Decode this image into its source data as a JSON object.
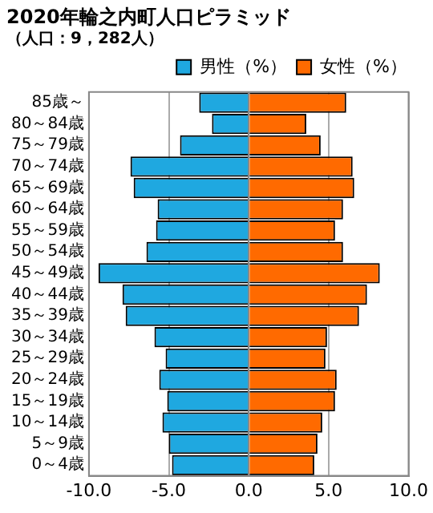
{
  "chart_data": {
    "type": "bar",
    "orientation": "horizontal",
    "stacked": true,
    "title": "2020年輪之内町人口ピラミッド",
    "subtitle": "（人口：9，282人）",
    "categories": [
      "85歳～",
      "80～84歳",
      "75～79歳",
      "70～74歳",
      "65～69歳",
      "60～64歳",
      "55～59歳",
      "50～54歳",
      "45～49歳",
      "40～44歳",
      "35～39歳",
      "30～34歳",
      "25～29歳",
      "20～24歳",
      "15～19歳",
      "10～14歳",
      "5～9歳",
      "0～4歳"
    ],
    "series": [
      {
        "name": "男性（%）",
        "color": "#1fa8e0",
        "values": [
          -3.1,
          -2.3,
          -4.3,
          -7.4,
          -7.2,
          -5.7,
          -5.8,
          -6.4,
          -9.4,
          -7.9,
          -7.7,
          -5.9,
          -5.2,
          -5.6,
          -5.1,
          -5.4,
          -5.0,
          -4.8
        ]
      },
      {
        "name": "女性（%）",
        "color": "#ff6a00",
        "values": [
          6.1,
          3.6,
          4.5,
          6.5,
          6.6,
          5.9,
          5.4,
          5.9,
          8.2,
          7.4,
          6.9,
          4.9,
          4.8,
          5.5,
          5.4,
          4.6,
          4.3,
          4.1
        ]
      }
    ],
    "xlim": [
      -10,
      10
    ],
    "xticks": [
      {
        "value": -10,
        "label": "-10.0"
      },
      {
        "value": -5,
        "label": "-5.0"
      },
      {
        "value": 0,
        "label": "0.0"
      },
      {
        "value": 5,
        "label": "5.0"
      },
      {
        "value": 10,
        "label": "10.0"
      }
    ],
    "grid": "x",
    "legend": "top right"
  }
}
